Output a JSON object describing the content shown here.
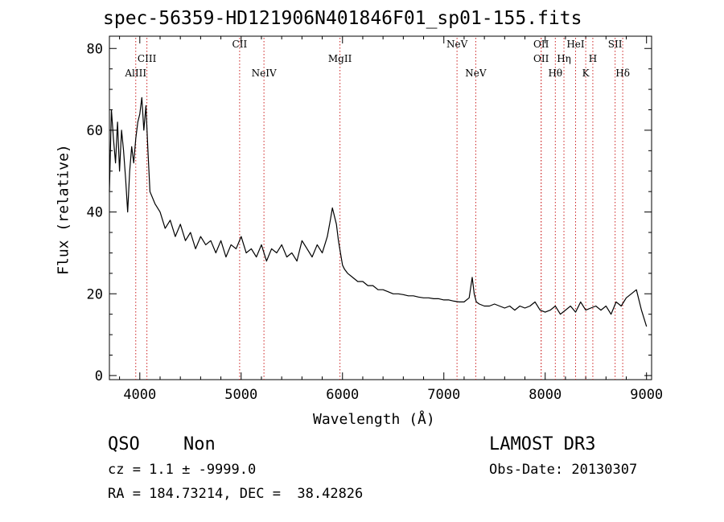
{
  "chart_data": {
    "type": "line",
    "title": "spec-56359-HD121906N401846F01_sp01-155.fits",
    "xlabel": "Wavelength (Å)",
    "ylabel": "Flux (relative)",
    "xlim": [
      3700,
      9050
    ],
    "ylim": [
      -1,
      83
    ],
    "xticks": [
      4000,
      5000,
      6000,
      7000,
      8000,
      9000
    ],
    "yticks": [
      0,
      20,
      40,
      60,
      80
    ],
    "grid": false,
    "series": [
      {
        "color": "#000000",
        "x": [
          3700,
          3720,
          3740,
          3760,
          3780,
          3800,
          3820,
          3840,
          3860,
          3880,
          3900,
          3920,
          3940,
          3960,
          3980,
          4000,
          4020,
          4040,
          4060,
          4080,
          4100,
          4150,
          4200,
          4250,
          4300,
          4350,
          4400,
          4450,
          4500,
          4550,
          4600,
          4650,
          4700,
          4750,
          4800,
          4850,
          4900,
          4950,
          5000,
          5050,
          5100,
          5150,
          5200,
          5250,
          5300,
          5350,
          5400,
          5450,
          5500,
          5550,
          5600,
          5650,
          5700,
          5750,
          5800,
          5850,
          5880,
          5900,
          5920,
          5940,
          5960,
          5980,
          6000,
          6020,
          6050,
          6100,
          6150,
          6200,
          6250,
          6300,
          6350,
          6400,
          6450,
          6500,
          6550,
          6600,
          6650,
          6700,
          6750,
          6800,
          6850,
          6900,
          6950,
          7000,
          7050,
          7100,
          7150,
          7200,
          7250,
          7280,
          7300,
          7320,
          7350,
          7400,
          7450,
          7500,
          7550,
          7600,
          7650,
          7700,
          7750,
          7800,
          7850,
          7900,
          7950,
          8000,
          8050,
          8100,
          8150,
          8200,
          8250,
          8300,
          8350,
          8400,
          8450,
          8500,
          8550,
          8600,
          8650,
          8700,
          8750,
          8800,
          8850,
          8900,
          8950,
          9000
        ],
        "y": [
          45,
          65,
          58,
          52,
          62,
          50,
          60,
          55,
          48,
          40,
          50,
          56,
          52,
          58,
          62,
          64,
          68,
          60,
          66,
          55,
          45,
          42,
          40,
          36,
          38,
          34,
          37,
          33,
          35,
          31,
          34,
          32,
          33,
          30,
          33,
          29,
          32,
          31,
          34,
          30,
          31,
          29,
          32,
          28,
          31,
          30,
          32,
          29,
          30,
          28,
          33,
          31,
          29,
          32,
          30,
          34,
          38,
          41,
          39,
          37,
          33,
          30,
          27,
          26,
          25,
          24,
          23,
          23,
          22,
          22,
          21,
          21,
          20.5,
          20,
          20,
          19.8,
          19.5,
          19.5,
          19.2,
          19,
          19,
          18.8,
          18.8,
          18.5,
          18.5,
          18.2,
          18,
          18,
          19,
          24,
          20,
          18,
          17.5,
          17,
          17,
          17.5,
          17,
          16.5,
          17,
          16,
          17,
          16.5,
          17,
          18,
          16,
          15.5,
          16,
          17,
          15,
          16,
          17,
          15.5,
          18,
          16,
          16.5,
          17,
          16,
          17,
          15,
          18,
          17,
          19,
          20,
          21,
          16,
          12
        ]
      }
    ],
    "line_markers": [
      {
        "label": "AlIII",
        "wavelength": 3960
      },
      {
        "label": "CIII",
        "wavelength": 4070
      },
      {
        "label": "CII",
        "wavelength": 4985
      },
      {
        "label": "NeIV",
        "wavelength": 5225
      },
      {
        "label": "MgII",
        "wavelength": 5975
      },
      {
        "label": "NeV",
        "wavelength": 7130
      },
      {
        "label": "NeV",
        "wavelength": 7315
      },
      {
        "label": "OII",
        "wavelength": 7960
      },
      {
        "label": "OII",
        "wavelength": 7960
      },
      {
        "label": "Hθ",
        "wavelength": 8100
      },
      {
        "label": "Hη",
        "wavelength": 8185
      },
      {
        "label": "HeI",
        "wavelength": 8300
      },
      {
        "label": "K",
        "wavelength": 8400
      },
      {
        "label": "H",
        "wavelength": 8470
      },
      {
        "label": "SII",
        "wavelength": 8690
      },
      {
        "label": "Hδ",
        "wavelength": 8765
      }
    ],
    "line_marker_color": "#cc2222"
  },
  "info": {
    "object_class": "QSO",
    "subclass": "Non",
    "survey": "LAMOST DR3",
    "cz": "cz = 1.1 ± -9999.0",
    "obs_date": "Obs-Date: 20130307",
    "coords": "RA = 184.73214, DEC =  38.42826"
  }
}
